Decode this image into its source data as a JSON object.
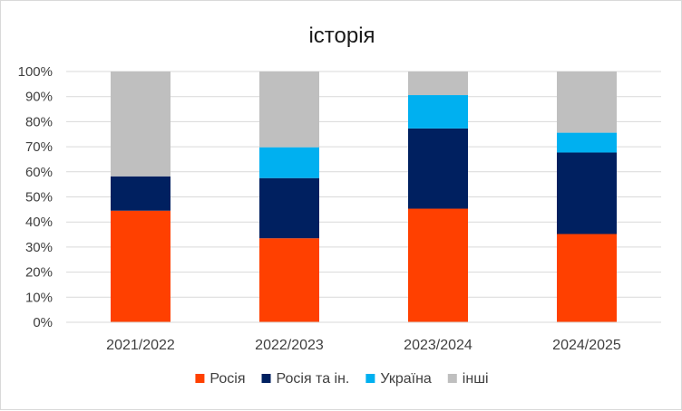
{
  "chart_data": {
    "type": "bar",
    "stacked": true,
    "percent_stacked": true,
    "title": "історія",
    "xlabel": "",
    "ylabel": "",
    "ylim": [
      0,
      100
    ],
    "yticks": [
      "0%",
      "10%",
      "20%",
      "30%",
      "40%",
      "50%",
      "60%",
      "70%",
      "80%",
      "90%",
      "100%"
    ],
    "categories": [
      "2021/2022",
      "2022/2023",
      "2023/2024",
      "2024/2025"
    ],
    "series": [
      {
        "name": "Росія",
        "color": "#ff4000",
        "values": [
          44.5,
          33.5,
          45.3,
          35.2
        ]
      },
      {
        "name": "Росія та ін.",
        "color": "#002060",
        "values": [
          13.7,
          24.0,
          32.0,
          32.5
        ]
      },
      {
        "name": "Україна",
        "color": "#00b0f0",
        "values": [
          0,
          12.3,
          13.3,
          7.9
        ]
      },
      {
        "name": "інші",
        "color": "#bfbfbf",
        "values": [
          41.8,
          30.2,
          9.4,
          24.4
        ]
      }
    ],
    "grid": true,
    "legend_position": "bottom"
  }
}
